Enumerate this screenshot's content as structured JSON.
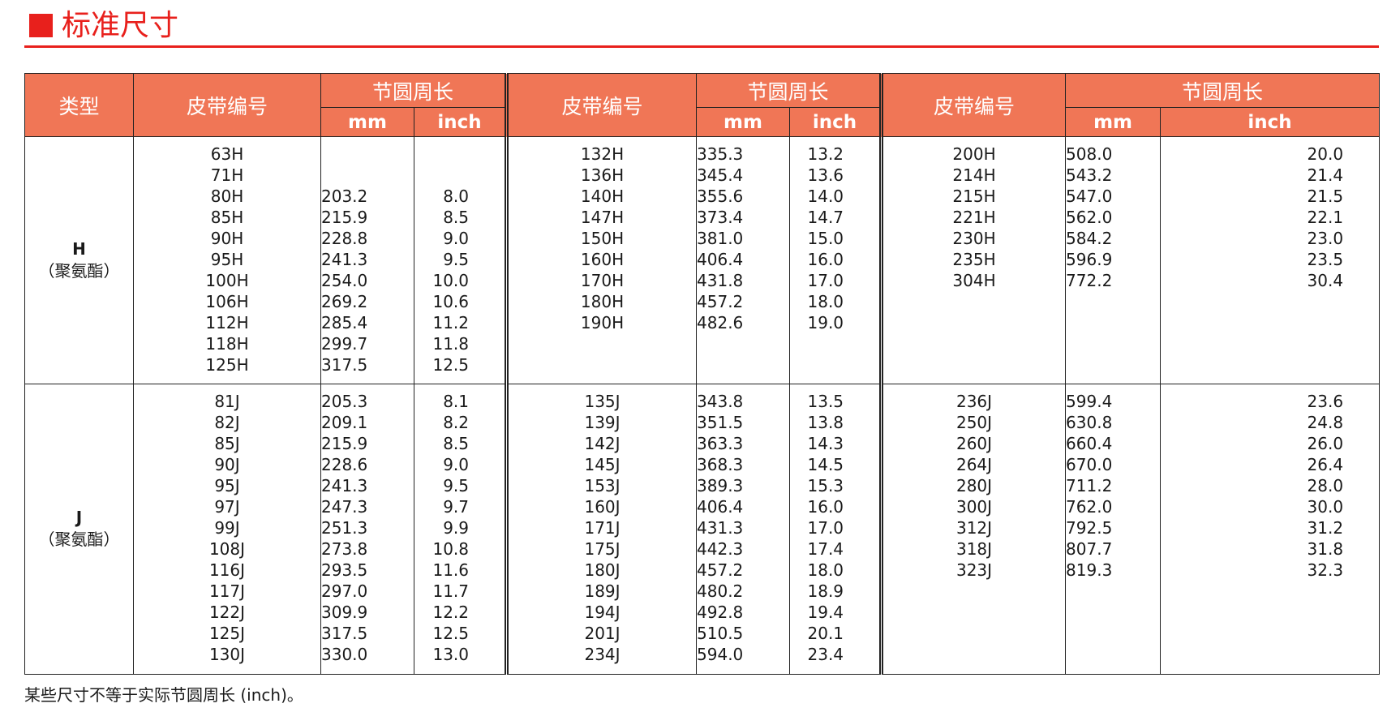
{
  "title": "标准尺寸",
  "headers": {
    "type": "类型",
    "belt_no": "皮带编号",
    "pitch_len": "节圆周长",
    "mm": "mm",
    "inch": "inch"
  },
  "groups": [
    {
      "type_code": "H",
      "type_material": "（聚氨酯）",
      "columns": [
        {
          "codes": [
            "63H",
            "71H",
            "80H",
            "85H",
            "90H",
            "95H",
            "100H",
            "106H",
            "112H",
            "118H",
            "125H"
          ],
          "mm": [
            "",
            "",
            "203.2",
            "215.9",
            "228.8",
            "241.3",
            "254.0",
            "269.2",
            "285.4",
            "299.7",
            "317.5"
          ],
          "inch": [
            "",
            "",
            "8.0",
            "8.5",
            "9.0",
            "9.5",
            "10.0",
            "10.6",
            "11.2",
            "11.8",
            "12.5"
          ]
        },
        {
          "codes": [
            "132H",
            "136H",
            "140H",
            "147H",
            "150H",
            "160H",
            "170H",
            "180H",
            "190H"
          ],
          "mm": [
            "335.3",
            "345.4",
            "355.6",
            "373.4",
            "381.0",
            "406.4",
            "431.8",
            "457.2",
            "482.6"
          ],
          "inch": [
            "13.2",
            "13.6",
            "14.0",
            "14.7",
            "15.0",
            "16.0",
            "17.0",
            "18.0",
            "19.0"
          ]
        },
        {
          "codes": [
            "200H",
            "214H",
            "215H",
            "221H",
            "230H",
            "235H",
            "304H"
          ],
          "mm": [
            "508.0",
            "543.2",
            "547.0",
            "562.0",
            "584.2",
            "596.9",
            "772.2"
          ],
          "inch": [
            "20.0",
            "21.4",
            "21.5",
            "22.1",
            "23.0",
            "23.5",
            "30.4"
          ]
        }
      ]
    },
    {
      "type_code": "J",
      "type_material": "（聚氨酯）",
      "columns": [
        {
          "codes": [
            "81J",
            "82J",
            "85J",
            "90J",
            "95J",
            "97J",
            "99J",
            "108J",
            "116J",
            "117J",
            "122J",
            "125J",
            "130J"
          ],
          "mm": [
            "205.3",
            "209.1",
            "215.9",
            "228.6",
            "241.3",
            "247.3",
            "251.3",
            "273.8",
            "293.5",
            "297.0",
            "309.9",
            "317.5",
            "330.0"
          ],
          "inch": [
            "8.1",
            "8.2",
            "8.5",
            "9.0",
            "9.5",
            "9.7",
            "9.9",
            "10.8",
            "11.6",
            "11.7",
            "12.2",
            "12.5",
            "13.0"
          ]
        },
        {
          "codes": [
            "135J",
            "139J",
            "142J",
            "145J",
            "153J",
            "160J",
            "171J",
            "175J",
            "180J",
            "189J",
            "194J",
            "201J",
            "234J"
          ],
          "mm": [
            "343.8",
            "351.5",
            "363.3",
            "368.3",
            "389.3",
            "406.4",
            "431.3",
            "442.3",
            "457.2",
            "480.2",
            "492.8",
            "510.5",
            "594.0"
          ],
          "inch": [
            "13.5",
            "13.8",
            "14.3",
            "14.5",
            "15.3",
            "16.0",
            "17.0",
            "17.4",
            "18.0",
            "18.9",
            "19.4",
            "20.1",
            "23.4"
          ]
        },
        {
          "codes": [
            "236J",
            "250J",
            "260J",
            "264J",
            "280J",
            "300J",
            "312J",
            "318J",
            "323J"
          ],
          "mm": [
            "599.4",
            "630.8",
            "660.4",
            "670.0",
            "711.2",
            "762.0",
            "792.5",
            "807.7",
            "819.3"
          ],
          "inch": [
            "23.6",
            "24.8",
            "26.0",
            "26.4",
            "28.0",
            "30.0",
            "31.2",
            "31.8",
            "32.3"
          ]
        }
      ]
    }
  ],
  "footnote": "某些尺寸不等于实际节圆周长 (inch)。",
  "colors": {
    "accent": "#e8201c",
    "header_bg": "#f07656"
  }
}
